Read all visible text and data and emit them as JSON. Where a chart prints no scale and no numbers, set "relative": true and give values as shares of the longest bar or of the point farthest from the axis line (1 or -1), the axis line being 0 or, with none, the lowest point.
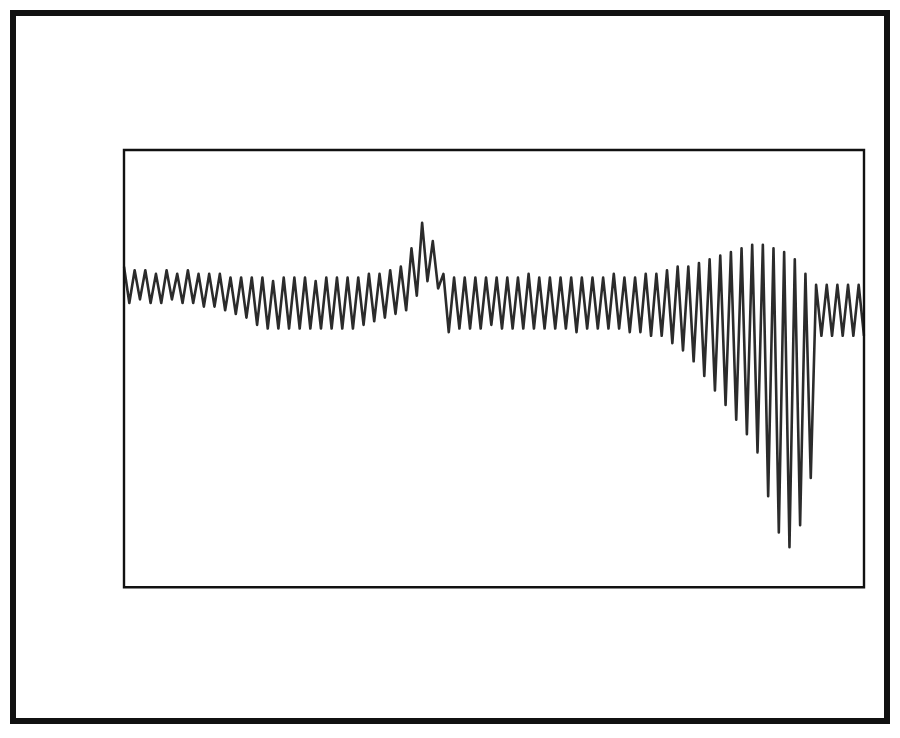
{
  "chart_data": {
    "type": "line",
    "relative": true,
    "grid": false,
    "legend": false,
    "marker": "none",
    "line_style": "solid",
    "categories": [
      null,
      null,
      null,
      null,
      null,
      null,
      null,
      null,
      null,
      null,
      null,
      null,
      null,
      null,
      null,
      null,
      null,
      null,
      null,
      null,
      null,
      null,
      null,
      null,
      null,
      null,
      null,
      null,
      null,
      null,
      null,
      null,
      null,
      null,
      null,
      null,
      null,
      null,
      null,
      null,
      null,
      null,
      null,
      null,
      null,
      null,
      null,
      null,
      null,
      null,
      null,
      null,
      null,
      null,
      null,
      null,
      null,
      null,
      null,
      null,
      null,
      null,
      null,
      null,
      null,
      null,
      null,
      null,
      null,
      null,
      null,
      null,
      null,
      null,
      null,
      null,
      null,
      null,
      null,
      null,
      null,
      null,
      null,
      null,
      null,
      null,
      null,
      null,
      null,
      null,
      null,
      null,
      null,
      null,
      null,
      null,
      null,
      null,
      null,
      null,
      null,
      null,
      null,
      null,
      null,
      null,
      null,
      null,
      null,
      null,
      null,
      null,
      null,
      null,
      null,
      null,
      null,
      null,
      null,
      null,
      null,
      null,
      null,
      null,
      null,
      null,
      null,
      null,
      null,
      null,
      null,
      null,
      null,
      null,
      null,
      null,
      null,
      null,
      null,
      null
    ],
    "series": [
      {
        "color": "#2b2b2b",
        "values": [
          0.88,
          0.78,
          0.87,
          0.79,
          0.87,
          0.78,
          0.86,
          0.78,
          0.87,
          0.79,
          0.86,
          0.78,
          0.87,
          0.78,
          0.86,
          0.77,
          0.86,
          0.77,
          0.86,
          0.76,
          0.85,
          0.75,
          0.85,
          0.74,
          0.85,
          0.72,
          0.85,
          0.71,
          0.84,
          0.71,
          0.85,
          0.71,
          0.85,
          0.71,
          0.85,
          0.71,
          0.84,
          0.71,
          0.85,
          0.71,
          0.85,
          0.71,
          0.85,
          0.71,
          0.85,
          0.72,
          0.86,
          0.73,
          0.86,
          0.74,
          0.87,
          0.75,
          0.88,
          0.76,
          0.93,
          0.8,
          1.0,
          0.84,
          0.95,
          0.82,
          0.86,
          0.7,
          0.85,
          0.71,
          0.85,
          0.71,
          0.85,
          0.71,
          0.85,
          0.72,
          0.85,
          0.71,
          0.85,
          0.71,
          0.85,
          0.71,
          0.86,
          0.71,
          0.85,
          0.71,
          0.85,
          0.71,
          0.85,
          0.71,
          0.85,
          0.7,
          0.85,
          0.71,
          0.85,
          0.71,
          0.85,
          0.71,
          0.86,
          0.71,
          0.85,
          0.7,
          0.85,
          0.7,
          0.86,
          0.69,
          0.86,
          0.69,
          0.87,
          0.67,
          0.88,
          0.65,
          0.88,
          0.62,
          0.89,
          0.58,
          0.9,
          0.54,
          0.91,
          0.5,
          0.92,
          0.46,
          0.93,
          0.42,
          0.94,
          0.37,
          0.94,
          0.25,
          0.93,
          0.15,
          0.92,
          0.11,
          0.9,
          0.17,
          0.86,
          0.3,
          0.83,
          0.69,
          0.83,
          0.69,
          0.83,
          0.69,
          0.83,
          0.69,
          0.83,
          0.69
        ]
      }
    ]
  }
}
